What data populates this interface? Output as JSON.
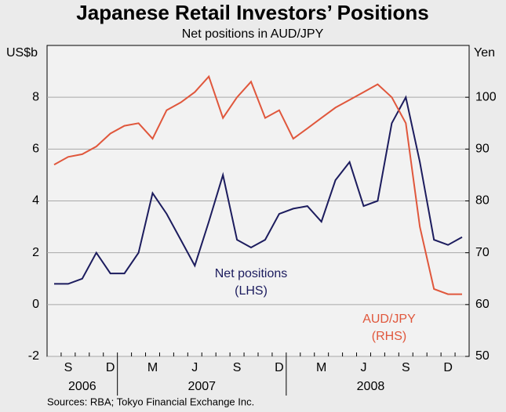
{
  "chart_data": {
    "type": "line",
    "title": "Japanese Retail Investors’ Positions",
    "subtitle": "Net positions in AUD/JPY",
    "y_label": "US$b",
    "y2_label": "Yen",
    "source": "Sources: RBA; Tokyo Financial Exchange Inc.",
    "categories": [
      null,
      "S",
      null,
      null,
      "D",
      null,
      null,
      "M",
      null,
      null,
      "J",
      null,
      null,
      "S",
      null,
      null,
      "D",
      null,
      null,
      "M",
      null,
      null,
      "J",
      null,
      null,
      "S",
      null,
      null,
      "D",
      null
    ],
    "year_labels": [
      "2006",
      "2007",
      "2008"
    ],
    "series": [
      {
        "name": "Net positions",
        "note": "(LHS)",
        "color": "#1c1c5e",
        "axis": "y",
        "values": [
          0.8,
          0.8,
          1.0,
          2.0,
          1.2,
          1.2,
          2.0,
          4.3,
          3.5,
          2.5,
          1.5,
          3.2,
          5.0,
          2.5,
          2.2,
          2.5,
          3.5,
          3.7,
          3.8,
          3.2,
          4.8,
          5.5,
          3.8,
          4.0,
          7.0,
          8.0,
          5.5,
          2.5,
          2.3,
          2.6
        ]
      },
      {
        "name": "AUD/JPY",
        "note": "(RHS)",
        "color": "#e0573c",
        "axis": "y2",
        "values": [
          87,
          88.5,
          89,
          90.5,
          93,
          94.5,
          95,
          92,
          97.5,
          99,
          101,
          104,
          96,
          100,
          103,
          96,
          97.5,
          92,
          94,
          96,
          98,
          99.5,
          101,
          102.5,
          100,
          95,
          75,
          63,
          62,
          62
        ]
      }
    ],
    "ylim": [
      -2,
      10
    ],
    "yticks": [
      -2,
      0,
      2,
      4,
      6,
      8
    ],
    "y2lim": [
      50,
      110
    ],
    "y2ticks": [
      50,
      60,
      70,
      80,
      90,
      100
    ],
    "grid": true
  }
}
